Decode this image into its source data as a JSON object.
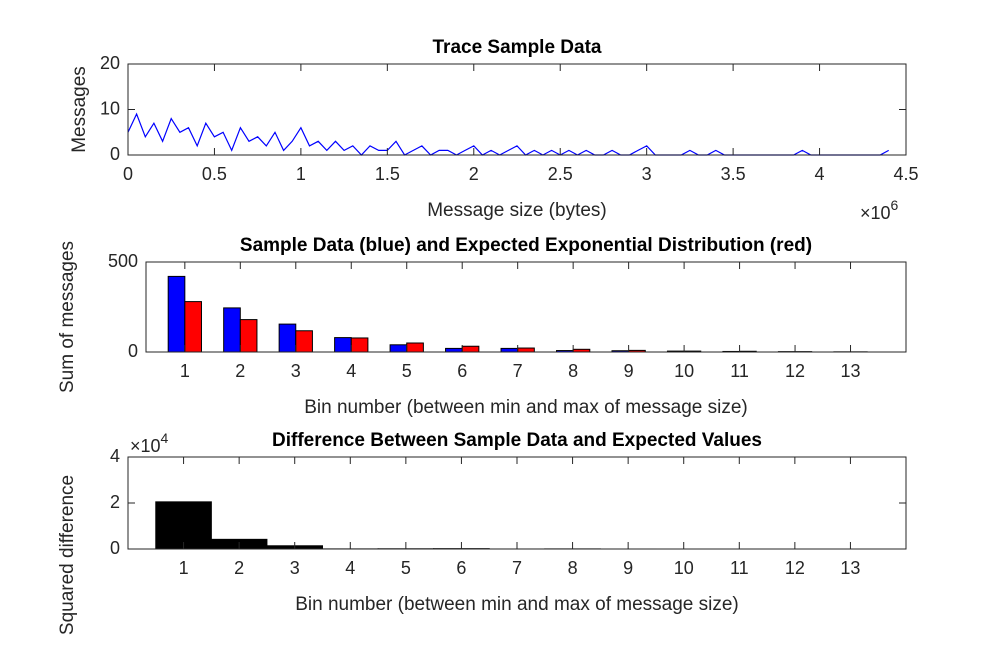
{
  "chart_data": [
    {
      "type": "line",
      "title": "Trace Sample Data",
      "xlabel": "Message size (bytes)",
      "ylabel": "Messages",
      "x_multiplier": {
        "base": "×10",
        "exponent": "6"
      },
      "color": "#0000ff",
      "x": [
        0,
        50000,
        100000,
        150000,
        200000,
        250000,
        300000,
        350000,
        400000,
        450000,
        500000,
        550000,
        600000,
        650000,
        700000,
        750000,
        800000,
        850000,
        900000,
        950000,
        1000000,
        1050000,
        1100000,
        1150000,
        1200000,
        1250000,
        1300000,
        1350000,
        1400000,
        1450000,
        1500000,
        1550000,
        1600000,
        1650000,
        1700000,
        1750000,
        1800000,
        1850000,
        1900000,
        1950000,
        2000000,
        2050000,
        2100000,
        2150000,
        2200000,
        2250000,
        2300000,
        2350000,
        2400000,
        2450000,
        2500000,
        2550000,
        2600000,
        2650000,
        2700000,
        2750000,
        2800000,
        2850000,
        2900000,
        2950000,
        3000000,
        3050000,
        3100000,
        3150000,
        3200000,
        3250000,
        3300000,
        3350000,
        3400000,
        3450000,
        3500000,
        3550000,
        3600000,
        3650000,
        3700000,
        3750000,
        3800000,
        3850000,
        3900000,
        3950000,
        4000000,
        4050000,
        4100000,
        4150000,
        4200000,
        4250000,
        4300000,
        4350000,
        4400000
      ],
      "values": [
        5,
        9,
        4,
        7,
        3,
        8,
        5,
        6,
        2,
        7,
        4,
        5,
        1,
        6,
        3,
        4,
        2,
        5,
        1,
        3,
        6,
        2,
        3,
        1,
        3,
        1,
        2,
        0,
        2,
        1,
        1,
        3,
        0,
        1,
        2,
        0,
        1,
        1,
        0,
        1,
        2,
        0,
        1,
        0,
        1,
        2,
        0,
        1,
        0,
        1,
        0,
        1,
        0,
        1,
        0,
        0,
        1,
        0,
        0,
        1,
        2,
        0,
        0,
        0,
        0,
        1,
        0,
        0,
        1,
        0,
        0,
        0,
        0,
        0,
        0,
        0,
        0,
        0,
        1,
        0,
        0,
        0,
        0,
        0,
        0,
        0,
        0,
        0,
        1
      ],
      "xlim": [
        0,
        4500000
      ],
      "xticks": [
        0,
        {
          "value": 500000,
          "label": "0.5"
        },
        {
          "value": 1000000,
          "label": "1"
        },
        {
          "value": 1500000,
          "label": "1.5"
        },
        {
          "value": 2000000,
          "label": "2"
        },
        {
          "value": 2500000,
          "label": "2.5"
        },
        {
          "value": 3000000,
          "label": "3"
        },
        {
          "value": 3500000,
          "label": "3.5"
        },
        {
          "value": 4000000,
          "label": "4"
        },
        {
          "value": 4500000,
          "label": "4.5"
        }
      ],
      "ylim": [
        0,
        20
      ],
      "yticks": [
        0,
        10,
        20
      ]
    },
    {
      "type": "grouped_bar",
      "title": "Sample Data (blue) and Expected Exponential Distribution (red)",
      "xlabel": "Bin number (between min and max of message size)",
      "ylabel": "Sum of messages",
      "x": [
        1,
        2,
        3,
        4,
        5,
        6,
        7,
        8,
        9,
        10,
        11,
        12,
        13
      ],
      "series": [
        {
          "color": "#0000ff",
          "values": [
            420,
            245,
            155,
            80,
            40,
            20,
            20,
            8,
            7,
            5,
            3,
            2,
            1
          ]
        },
        {
          "color": "#ff0000",
          "values": [
            280,
            180,
            118,
            78,
            50,
            32,
            22,
            15,
            9,
            5,
            4,
            2,
            1
          ]
        }
      ],
      "xlim": [
        0.3,
        14
      ],
      "xticks": [
        1,
        2,
        3,
        4,
        5,
        6,
        7,
        8,
        9,
        10,
        11,
        12,
        13
      ],
      "ylim": [
        0,
        500
      ],
      "yticks": [
        0,
        500
      ]
    },
    {
      "type": "bar",
      "title": "Difference Between Sample Data and Expected Values",
      "xlabel": "Bin number (between min and max of message size)",
      "ylabel": "Squared difference",
      "y_multiplier": {
        "base": "×10",
        "exponent": "4"
      },
      "color": "#000000",
      "x": [
        1,
        2,
        3,
        4,
        5,
        6,
        7,
        8,
        9,
        10,
        11,
        12,
        13
      ],
      "values": [
        20500,
        4200,
        1400,
        50,
        100,
        150,
        10,
        50,
        5,
        0,
        0,
        0,
        0
      ],
      "xlim": [
        0,
        14
      ],
      "xticks": [
        1,
        2,
        3,
        4,
        5,
        6,
        7,
        8,
        9,
        10,
        11,
        12,
        13
      ],
      "ylim": [
        0,
        40000
      ],
      "yticks": [
        0,
        {
          "value": 20000,
          "label": "2"
        },
        {
          "value": 40000,
          "label": "4"
        }
      ]
    }
  ]
}
